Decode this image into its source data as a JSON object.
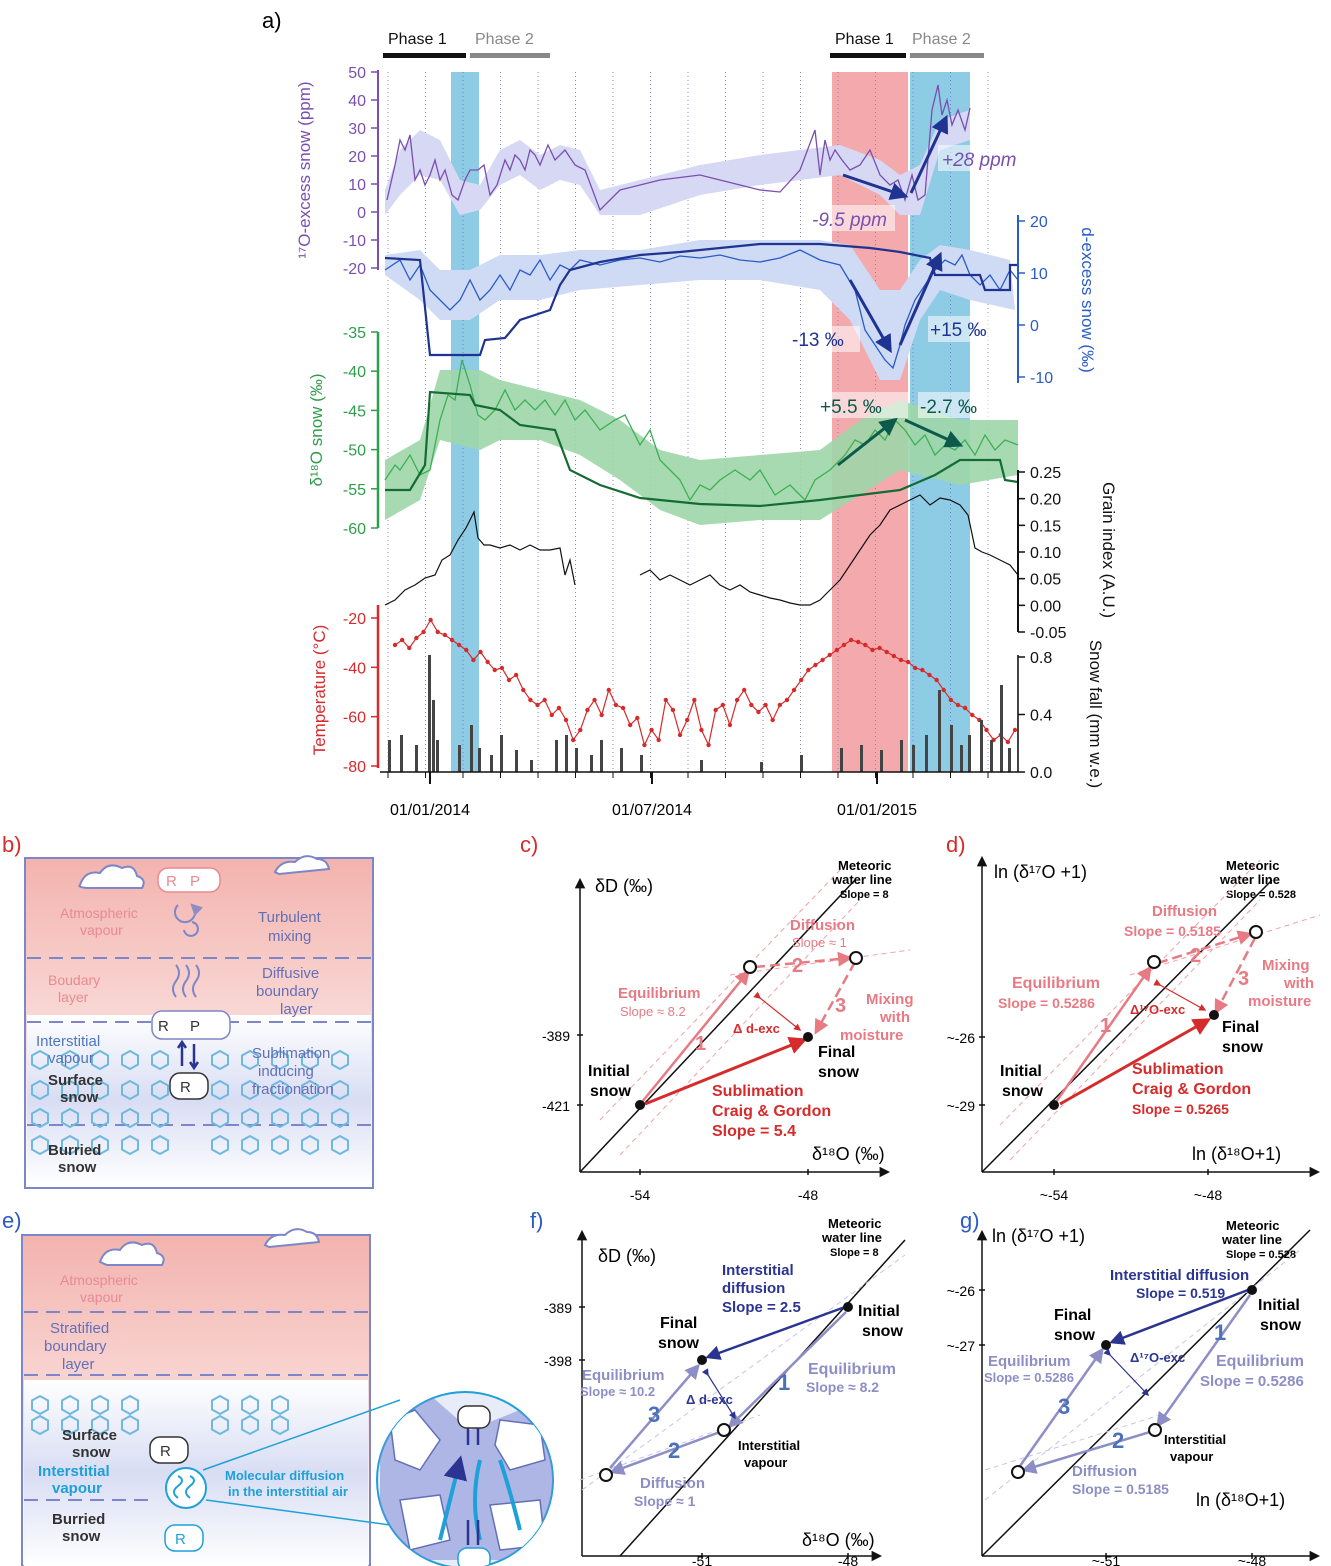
{
  "panel_labels": {
    "a": "a)",
    "b": "b)",
    "c": "c)",
    "d": "d)",
    "e": "e)",
    "f": "f)",
    "g": "g)"
  },
  "phases": {
    "p1": "Phase 1",
    "p2": "Phase 2"
  },
  "colors": {
    "purple": "#7a4fb0",
    "blue": "#2a5bc8",
    "darkblue": "#1f3390",
    "green": "#2e9e4a",
    "red": "#d62b2b",
    "black": "#111111",
    "pink_band": "#f4a9ad",
    "blue_band": "#8ecbe5",
    "shade_purple": "#d6d8f4",
    "shade_blue": "#cfdaf4",
    "shade_green": "#9fd6a8",
    "salmon": "#e87a84",
    "lavender": "#8d8ec6"
  },
  "panel_a": {
    "x_ticks": [
      "01/01/2014",
      "01/07/2014",
      "01/01/2015"
    ],
    "axis_17o": {
      "label": "¹⁷O-excess snow (ppm)",
      "ticks": [
        "50",
        "40",
        "30",
        "20",
        "10",
        "0",
        "-10",
        "-20"
      ]
    },
    "axis_dex": {
      "label": "d-excess snow (‰)",
      "ticks": [
        "20",
        "10",
        "0",
        "-10"
      ]
    },
    "axis_d18o": {
      "label": "δ¹⁸O snow (‰)",
      "ticks": [
        "-35",
        "-40",
        "-45",
        "-50",
        "-55",
        "-60"
      ]
    },
    "axis_grain": {
      "label": "Grain index (A.U.)",
      "ticks": [
        "0.25",
        "0.20",
        "0.15",
        "0.10",
        "0.05",
        "0.00",
        "-0.05"
      ]
    },
    "axis_temp": {
      "label": "Temperature (°C)",
      "ticks": [
        "-20",
        "-40",
        "-60",
        "-80"
      ]
    },
    "axis_snow": {
      "label": "Snow fall (mm w.e.)",
      "ticks": [
        "0.8",
        "0.4",
        "0.0"
      ]
    },
    "annotations": {
      "a1": "+28 ppm",
      "a2": "-9.5 ppm",
      "a3": "-13 ‰",
      "a4": "+15 ‰",
      "a5": "+5.5 ‰",
      "a6": "-2.7 ‰"
    }
  },
  "panel_b": {
    "atm": "Atmospheric vapour",
    "turb": "Turbulent mixing",
    "bl": "Boudary layer",
    "dbl": "Diffusive boundary layer",
    "iv": "Interstitial vapour",
    "ss": "Surface snow",
    "sub": "Sublimation inducing fractionation",
    "bs": "Burried snow",
    "ra": "R",
    "pa": "P",
    "req": "R",
    "psat": "P",
    "rs": "R"
  },
  "panel_c": {
    "yaxis": "δD (‰)",
    "xaxis": "δ¹⁸O (‰)",
    "mwl": "Meteoric water line",
    "mwl_slope": "Slope = 8",
    "y1": "-389",
    "y2": "-421",
    "x1": "-54",
    "x2": "-48",
    "diff": "Diffusion",
    "diff_s": "Slope ≈ 1",
    "eq": "Equilibrium",
    "eq_s": "Slope ≈ 8.2",
    "mix": "Mixing with moisture",
    "dexc": "Δ d-exc",
    "init": "Initial snow",
    "final": "Final snow",
    "sub": "Sublimation",
    "cg": "Craig & Gordon",
    "sub_s": "Slope = 5.4",
    "n1": "1",
    "n2": "2",
    "n3": "3"
  },
  "panel_d": {
    "yaxis": "ln (δ¹⁷O +1)",
    "xaxis": "ln (δ¹⁸O+1)",
    "mwl": "Meteoric water line",
    "mwl_slope": "Slope = 0.528",
    "y1": "~-26",
    "y2": "~-29",
    "x1": "~-54",
    "x2": "~-48",
    "diff": "Diffusion",
    "diff_s": "Slope = 0.5185",
    "eq": "Equilibrium",
    "eq_s": "Slope = 0.5286",
    "mix": "Mixing with moisture",
    "dexc": "Δ¹⁷O-exc",
    "init": "Initial snow",
    "final": "Final snow",
    "sub": "Sublimation",
    "cg": "Craig & Gordon",
    "sub_s": "Slope = 0.5265",
    "n1": "1",
    "n2": "2",
    "n3": "3"
  },
  "panel_e": {
    "atm": "Atmospheric vapour",
    "sbl": "Stratified boundary layer",
    "ss": "Surface snow",
    "iv": "Interstitial vapour",
    "bs": "Burried snow",
    "mol": "Molecular diffusion in the interstitial air",
    "rs": "R",
    "rn": "R"
  },
  "panel_f": {
    "yaxis": "δD (‰)",
    "xaxis": "δ¹⁸O (‰)",
    "mwl": "Meteoric water line",
    "mwl_slope": "Slope = 8",
    "y1": "-389",
    "y2": "-398",
    "x1": "-51",
    "x2": "-48",
    "idiff": "Interstitial diffusion",
    "idiff_s": "Slope = 2.5",
    "final": "Final snow",
    "init": "Initial snow",
    "eq": "Equilibrium",
    "eq_s1": "Slope ≈ 10.2",
    "eq_s2": "Slope ≈ 8.2",
    "dexc": "Δ d-exc",
    "iv": "Interstitial vapour",
    "diff": "Diffusion",
    "diff_s": "Slope ≈ 1",
    "n1": "1",
    "n2": "2",
    "n3": "3"
  },
  "panel_g": {
    "yaxis": "ln (δ¹⁷O +1)",
    "xaxis": "ln (δ¹⁸O+1)",
    "mwl": "Meteoric water line",
    "mwl_slope": "Slope = 0.528",
    "y1": "~-26",
    "y2": "~-27",
    "x1": "~-51",
    "x2": "~-48",
    "idiff": "Interstitial diffusion",
    "idiff_s": "Slope = 0.519",
    "final": "Final snow",
    "init": "Initial snow",
    "eq": "Equilibrium",
    "eq_s1": "Slope = 0.5286",
    "eq_s2": "Slope = 0.5286",
    "dexc": "Δ¹⁷O-exc",
    "iv": "Interstitial vapour",
    "diff": "Diffusion",
    "diff_s": "Slope = 0.5185",
    "n1": "1",
    "n2": "2",
    "n3": "3"
  }
}
